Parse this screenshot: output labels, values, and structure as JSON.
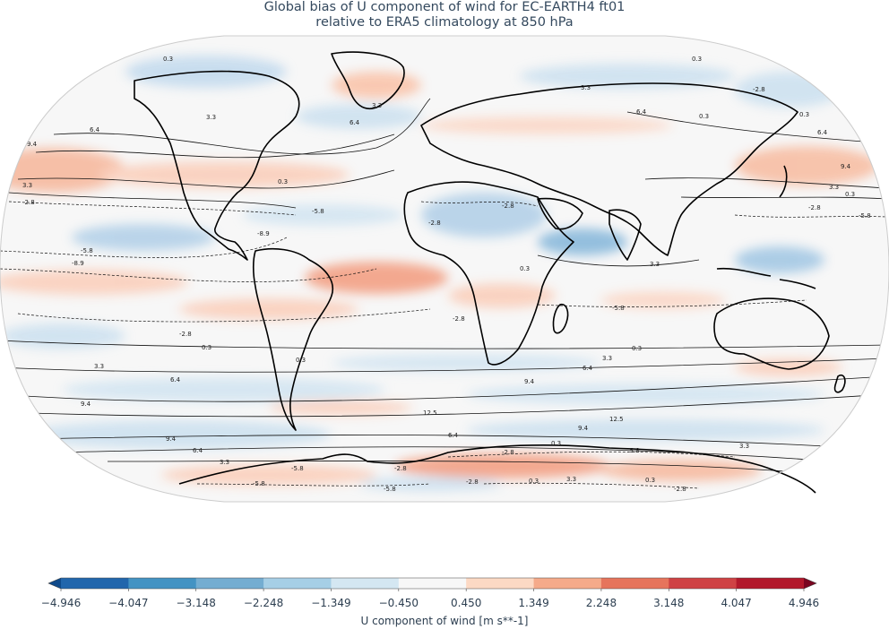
{
  "title_line1": "Global bias of U component of wind for EC-EARTH4 ft01",
  "title_line2": "relative to ERA5 climatology at 850 hPa",
  "colorbar": {
    "label": "U component of wind [m s**-1]",
    "ticks": [
      "−4.946",
      "−4.047",
      "−3.148",
      "−2.248",
      "−1.349",
      "−0.450",
      "0.450",
      "1.349",
      "2.248",
      "3.148",
      "4.047",
      "4.946"
    ],
    "colors": [
      "#2166ac",
      "#4393c3",
      "#74add1",
      "#a6cfe6",
      "#d4e7f2",
      "#f7f7f7",
      "#fcd9c4",
      "#f5aa8a",
      "#e6745c",
      "#cf4244",
      "#b2182b"
    ],
    "under_color": "#0f4a8a",
    "over_color": "#7a0520",
    "extend": "both"
  },
  "contour_labels": [
    "0.3",
    "3.3",
    "6.4",
    "9.4",
    "12.5",
    "-2.8",
    "-5.8",
    "-8.9"
  ],
  "map": {
    "projection": "Robinson",
    "land_outline_color": "#000000",
    "positive_contour_style": "solid",
    "negative_contour_style": "dashed"
  }
}
